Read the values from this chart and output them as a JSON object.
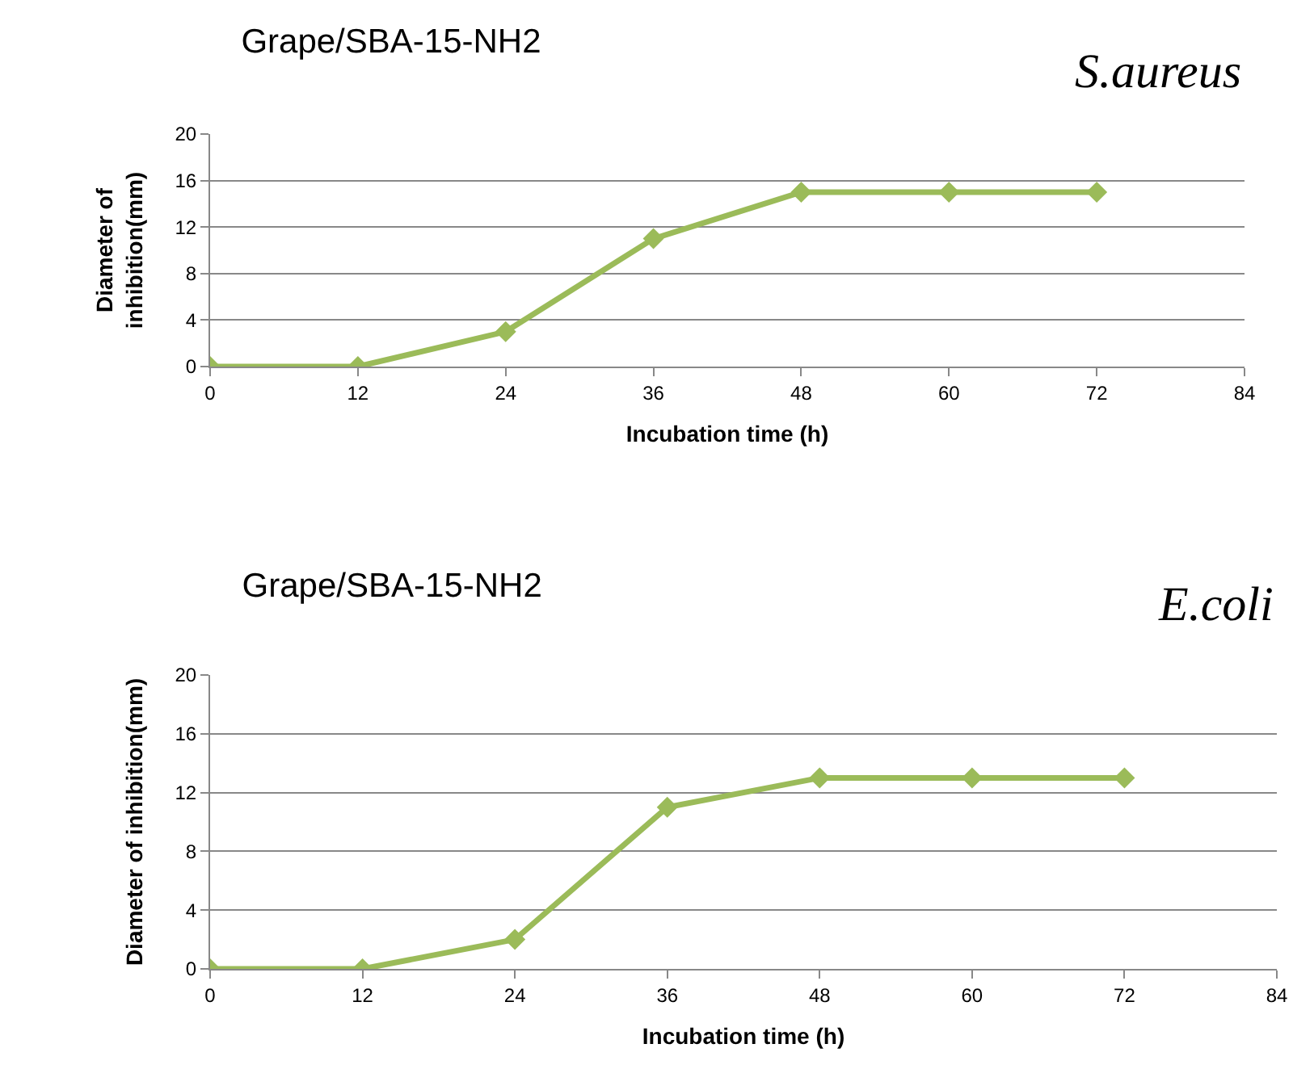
{
  "chart_data": [
    {
      "type": "line",
      "title": "Grape/SBA-15-NH2",
      "annotations": [
        "S.aureus"
      ],
      "xlabel": "Incubation time (h)",
      "ylabel": "Diameter of\ninhibition(mm)",
      "x": [
        0,
        12,
        24,
        36,
        48,
        60,
        72
      ],
      "series": [
        {
          "color": "#9bbb59",
          "values": [
            0,
            0,
            3,
            11,
            15,
            15,
            15
          ]
        }
      ],
      "xlim": [
        0,
        84
      ],
      "xticks": [
        0,
        12,
        24,
        36,
        48,
        60,
        72,
        84
      ],
      "ylim": [
        0,
        20
      ],
      "yticks": [
        0,
        4,
        8,
        12,
        16,
        20
      ],
      "grid": "y",
      "marker": "diamond",
      "line_style": "solid"
    },
    {
      "type": "line",
      "title": "Grape/SBA-15-NH2",
      "annotations": [
        "E.coli"
      ],
      "xlabel": "Incubation time (h)",
      "ylabel": "Diameter of inhibition(mm)",
      "x": [
        0,
        12,
        24,
        36,
        48,
        60,
        72
      ],
      "series": [
        {
          "color": "#9bbb59",
          "values": [
            0,
            0,
            2,
            11,
            13,
            13,
            13
          ]
        }
      ],
      "xlim": [
        0,
        84
      ],
      "xticks": [
        0,
        12,
        24,
        36,
        48,
        60,
        72,
        84
      ],
      "ylim": [
        0,
        20
      ],
      "yticks": [
        0,
        4,
        8,
        12,
        16,
        20
      ],
      "grid": "y",
      "marker": "diamond",
      "line_style": "solid"
    }
  ]
}
